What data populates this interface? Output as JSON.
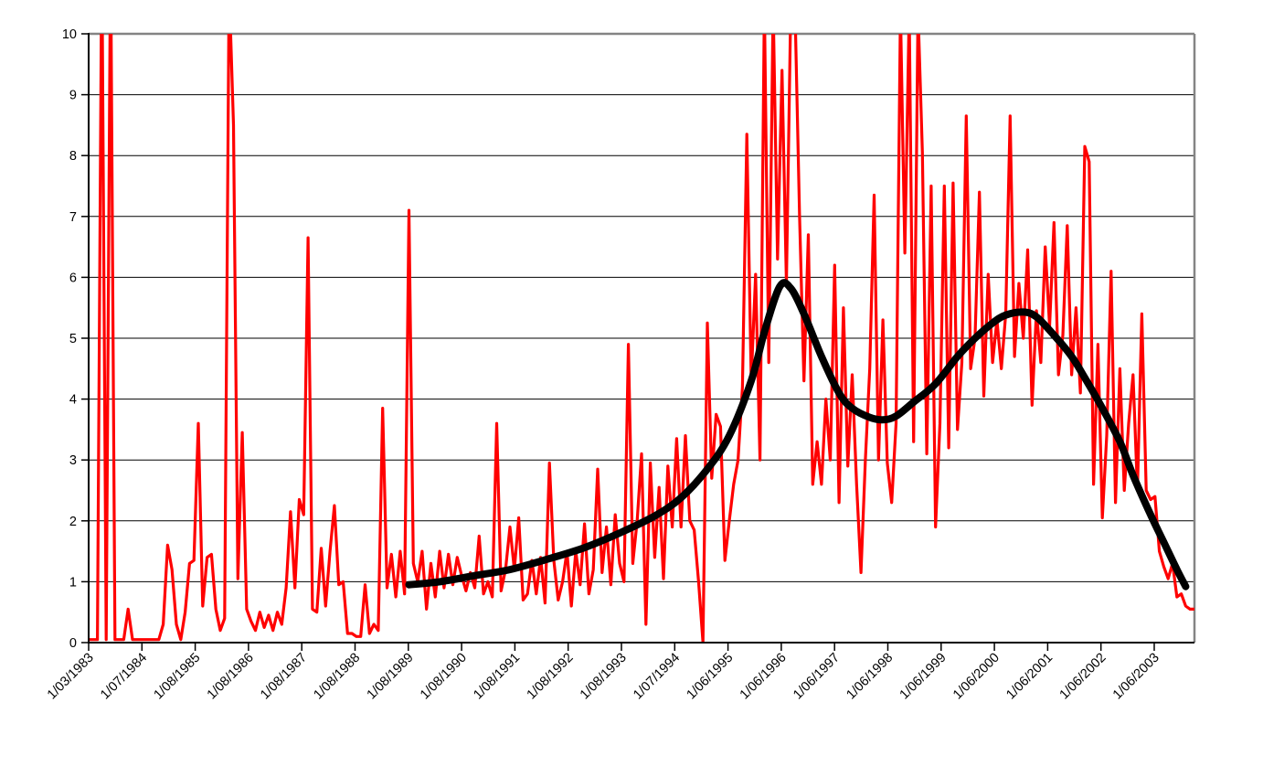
{
  "chart_data": {
    "type": "line",
    "title": "",
    "xlabel": "",
    "ylabel": "",
    "legend_position": "none",
    "grid": {
      "horizontal": true,
      "vertical": false
    },
    "x_axis": {
      "kind": "category-dates",
      "tick_labels": [
        "1/03/1983",
        "1/07/1984",
        "1/08/1985",
        "1/08/1986",
        "1/08/1987",
        "1/08/1988",
        "1/08/1989",
        "1/08/1990",
        "1/08/1991",
        "1/08/1992",
        "1/08/1993",
        "1/07/1994",
        "1/06/1995",
        "1/06/1996",
        "1/06/1997",
        "1/06/1998",
        "1/06/1999",
        "1/06/2000",
        "1/06/2001",
        "1/06/2002",
        "1/06/2003"
      ],
      "label_rotation_deg": 45,
      "points_per_tick_interval": 12.1
    },
    "y_axis": {
      "min": 0,
      "max": 10,
      "tick_step": 1,
      "tick_labels": [
        "0",
        "1",
        "2",
        "3",
        "4",
        "5",
        "6",
        "7",
        "8",
        "9",
        "10"
      ]
    },
    "plot_style": {
      "background": "#FFFFFF",
      "gridline_color": "#000000",
      "axis_color": "#000000",
      "plot_border_color": "#848484"
    },
    "series": [
      {
        "name": "observed-values-red",
        "type": "line",
        "color": "#FF0000",
        "stroke_width": 3.2,
        "note": "raw periodic observations; values recorded above 10 are off-scale and clipped at the plot top",
        "values": [
          0.05,
          0.05,
          0.05,
          11.5,
          0.05,
          11.5,
          0.05,
          0.05,
          0.05,
          0.55,
          0.05,
          0.05,
          0.05,
          0.05,
          0.05,
          0.05,
          0.05,
          0.3,
          1.6,
          1.2,
          0.3,
          0.05,
          0.5,
          1.3,
          1.35,
          3.6,
          0.6,
          1.4,
          1.45,
          0.55,
          0.2,
          0.4,
          10.8,
          8.5,
          1.05,
          3.45,
          0.55,
          0.35,
          0.2,
          0.5,
          0.25,
          0.45,
          0.2,
          0.5,
          0.3,
          0.9,
          2.15,
          0.9,
          2.35,
          2.1,
          6.65,
          0.55,
          0.5,
          1.55,
          0.6,
          1.5,
          2.25,
          0.95,
          1.0,
          0.15,
          0.15,
          0.1,
          0.1,
          0.95,
          0.15,
          0.3,
          0.2,
          3.85,
          0.9,
          1.45,
          0.75,
          1.5,
          0.8,
          7.1,
          1.3,
          1.0,
          1.5,
          0.55,
          1.3,
          0.75,
          1.5,
          0.9,
          1.45,
          0.95,
          1.4,
          1.1,
          0.85,
          1.15,
          0.9,
          1.75,
          0.8,
          1.0,
          0.75,
          3.6,
          0.85,
          1.2,
          1.9,
          1.2,
          2.05,
          0.7,
          0.8,
          1.35,
          0.8,
          1.4,
          0.65,
          2.95,
          1.35,
          0.7,
          1.0,
          1.5,
          0.6,
          1.5,
          0.95,
          1.95,
          0.8,
          1.2,
          2.85,
          1.15,
          1.9,
          0.95,
          2.1,
          1.3,
          1.0,
          4.9,
          1.3,
          2.0,
          3.1,
          0.3,
          2.95,
          1.4,
          2.55,
          1.05,
          2.9,
          1.9,
          3.35,
          1.9,
          3.4,
          2.0,
          1.85,
          1.0,
          0.0,
          5.25,
          2.7,
          3.75,
          3.55,
          1.35,
          2.0,
          2.6,
          3.0,
          4.2,
          8.35,
          4.3,
          6.05,
          3.0,
          10.5,
          4.6,
          10.5,
          6.3,
          9.4,
          5.9,
          10.5,
          10.3,
          7.0,
          4.3,
          6.7,
          2.6,
          3.3,
          2.6,
          4.0,
          3.0,
          6.2,
          2.3,
          5.5,
          2.9,
          4.4,
          2.6,
          1.15,
          3.0,
          4.5,
          7.35,
          3.0,
          5.3,
          2.95,
          2.3,
          3.6,
          10.4,
          6.4,
          10.4,
          3.3,
          10.4,
          8.05,
          3.1,
          7.5,
          1.9,
          3.6,
          7.5,
          3.2,
          7.55,
          3.5,
          4.6,
          8.65,
          4.5,
          5.0,
          7.4,
          4.05,
          6.05,
          4.6,
          5.3,
          4.5,
          5.4,
          8.65,
          4.7,
          5.9,
          5.0,
          6.45,
          3.9,
          5.45,
          4.6,
          6.5,
          5.2,
          6.9,
          4.4,
          5.05,
          6.85,
          4.4,
          5.5,
          4.1,
          8.15,
          7.9,
          2.6,
          4.9,
          2.05,
          3.4,
          6.1,
          2.3,
          4.5,
          2.5,
          3.6,
          4.4,
          2.5,
          5.4,
          2.5,
          2.35,
          2.4,
          1.5,
          1.25,
          1.05,
          1.3,
          0.75,
          0.8,
          0.6,
          0.55,
          0.55
        ]
      },
      {
        "name": "smoothed-trend-black",
        "type": "smooth-line",
        "color": "#000000",
        "stroke_width": 8,
        "note": "thick smooth trend curve; starts near index 73 (~1989) at ~0.95, first peak ~5.85 (~mid-1996), local minimum ~3.65 (~early 1998), second peak ~5.4 (~2000-2001), falls to ~0.9 at the end (2003)",
        "points": [
          [
            73,
            0.95
          ],
          [
            80,
            1.0
          ],
          [
            88,
            1.1
          ],
          [
            96,
            1.2
          ],
          [
            105,
            1.38
          ],
          [
            113,
            1.56
          ],
          [
            121,
            1.8
          ],
          [
            129,
            2.08
          ],
          [
            135,
            2.38
          ],
          [
            141,
            2.85
          ],
          [
            146,
            3.4
          ],
          [
            151,
            4.3
          ],
          [
            154,
            5.1
          ],
          [
            157.5,
            5.85
          ],
          [
            160,
            5.82
          ],
          [
            163,
            5.4
          ],
          [
            167,
            4.7
          ],
          [
            171,
            4.1
          ],
          [
            174,
            3.85
          ],
          [
            178,
            3.7
          ],
          [
            181,
            3.66
          ],
          [
            184,
            3.72
          ],
          [
            188,
            3.95
          ],
          [
            193,
            4.25
          ],
          [
            198,
            4.7
          ],
          [
            202,
            5.0
          ],
          [
            206,
            5.25
          ],
          [
            209,
            5.38
          ],
          [
            213,
            5.43
          ],
          [
            216,
            5.35
          ],
          [
            220,
            5.05
          ],
          [
            224,
            4.7
          ],
          [
            227,
            4.35
          ],
          [
            231,
            3.85
          ],
          [
            235,
            3.3
          ],
          [
            238,
            2.75
          ],
          [
            242,
            2.1
          ],
          [
            245,
            1.65
          ],
          [
            248,
            1.2
          ],
          [
            250,
            0.92
          ]
        ]
      }
    ]
  }
}
